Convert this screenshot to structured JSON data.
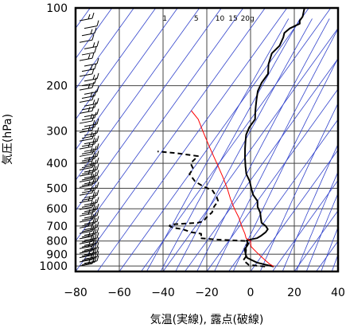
{
  "chart_data": {
    "type": "line",
    "title": "",
    "xlabel": "気温(実線), 露点(破線)",
    "ylabel": "気圧(hPa)",
    "xlim": [
      -80,
      40
    ],
    "ylim": [
      1050,
      100
    ],
    "y_scale": "log",
    "x_ticks": [
      -80,
      -60,
      -40,
      -20,
      0,
      20,
      40
    ],
    "x_tick_labels": [
      "−80",
      "−60",
      "−40",
      "−20",
      "0",
      "20",
      "40"
    ],
    "y_ticks": [
      100,
      200,
      300,
      400,
      500,
      600,
      700,
      800,
      900,
      1000
    ],
    "y_tick_labels": [
      "100",
      "200",
      "300",
      "400",
      "500",
      "600",
      "700",
      "800",
      "900",
      "1000"
    ],
    "grid": true,
    "skew_t": true,
    "mixing_ratio_labels": [
      "1",
      "5",
      "10",
      "15",
      "20g"
    ],
    "series": [
      {
        "line_style": "solid",
        "color": "#000000",
        "points": [
          [
            1005,
            9
          ],
          [
            990,
            5
          ],
          [
            970,
            0
          ],
          [
            950,
            -3
          ],
          [
            930,
            -6
          ],
          [
            900,
            -8
          ],
          [
            870,
            -9
          ],
          [
            850,
            -10
          ],
          [
            830,
            -10
          ],
          [
            810,
            -11
          ],
          [
            795,
            -12
          ],
          [
            780,
            -8
          ],
          [
            765,
            -7
          ],
          [
            740,
            -6
          ],
          [
            720,
            -6
          ],
          [
            700,
            -8
          ],
          [
            680,
            -11
          ],
          [
            650,
            -13
          ],
          [
            620,
            -15
          ],
          [
            590,
            -18
          ],
          [
            560,
            -20
          ],
          [
            530,
            -24
          ],
          [
            500,
            -27
          ],
          [
            470,
            -30
          ],
          [
            440,
            -34
          ],
          [
            410,
            -37
          ],
          [
            380,
            -40
          ],
          [
            350,
            -43
          ],
          [
            330,
            -45
          ],
          [
            310,
            -47
          ],
          [
            290,
            -48
          ],
          [
            270,
            -48
          ],
          [
            255,
            -50
          ],
          [
            240,
            -52
          ],
          [
            225,
            -54
          ],
          [
            210,
            -56
          ],
          [
            195,
            -57
          ],
          [
            180,
            -57
          ],
          [
            165,
            -60
          ],
          [
            150,
            -62
          ],
          [
            140,
            -61
          ],
          [
            130,
            -62
          ],
          [
            125,
            -63
          ],
          [
            120,
            -62
          ],
          [
            115,
            -59
          ],
          [
            112,
            -60
          ],
          [
            108,
            -60
          ],
          [
            104,
            -61
          ],
          [
            100,
            -62
          ]
        ]
      },
      {
        "line_style": "dashed",
        "color": "#000000",
        "points": [
          [
            1005,
            5
          ],
          [
            990,
            -3
          ],
          [
            970,
            -5
          ],
          [
            950,
            -7
          ],
          [
            920,
            -7
          ],
          [
            900,
            -8
          ],
          [
            880,
            -9
          ],
          [
            860,
            -10
          ],
          [
            840,
            -11
          ],
          [
            820,
            -10
          ],
          [
            800,
            -12
          ],
          [
            790,
            -26
          ],
          [
            780,
            -34
          ],
          [
            770,
            -34
          ],
          [
            750,
            -35
          ],
          [
            740,
            -40
          ],
          [
            720,
            -45
          ],
          [
            710,
            -50
          ],
          [
            700,
            -52
          ],
          [
            690,
            -52
          ],
          [
            680,
            -40
          ],
          [
            670,
            -38
          ],
          [
            650,
            -38
          ],
          [
            620,
            -37
          ],
          [
            590,
            -38
          ],
          [
            560,
            -38
          ],
          [
            540,
            -40
          ],
          [
            510,
            -44
          ],
          [
            490,
            -50
          ],
          [
            470,
            -55
          ],
          [
            440,
            -60
          ],
          [
            420,
            -60
          ],
          [
            400,
            -63
          ],
          [
            375,
            -62
          ],
          [
            365,
            -73
          ],
          [
            360,
            -82
          ]
        ]
      },
      {
        "line_style": "solid",
        "color": "#ff0000",
        "points": [
          [
            1005,
            9
          ],
          [
            980,
            6
          ],
          [
            950,
            3
          ],
          [
            920,
            0
          ],
          [
            890,
            -3
          ],
          [
            860,
            -6
          ],
          [
            840,
            -8
          ],
          [
            820,
            -9
          ],
          [
            800,
            -10
          ],
          [
            780,
            -13
          ],
          [
            750,
            -15
          ],
          [
            700,
            -19
          ],
          [
            650,
            -23
          ],
          [
            600,
            -28
          ],
          [
            550,
            -33
          ],
          [
            500,
            -38
          ],
          [
            450,
            -44
          ],
          [
            400,
            -51
          ],
          [
            350,
            -59
          ],
          [
            300,
            -68
          ],
          [
            270,
            -74
          ],
          [
            250,
            -80
          ]
        ]
      }
    ],
    "wind_barbs": true
  }
}
